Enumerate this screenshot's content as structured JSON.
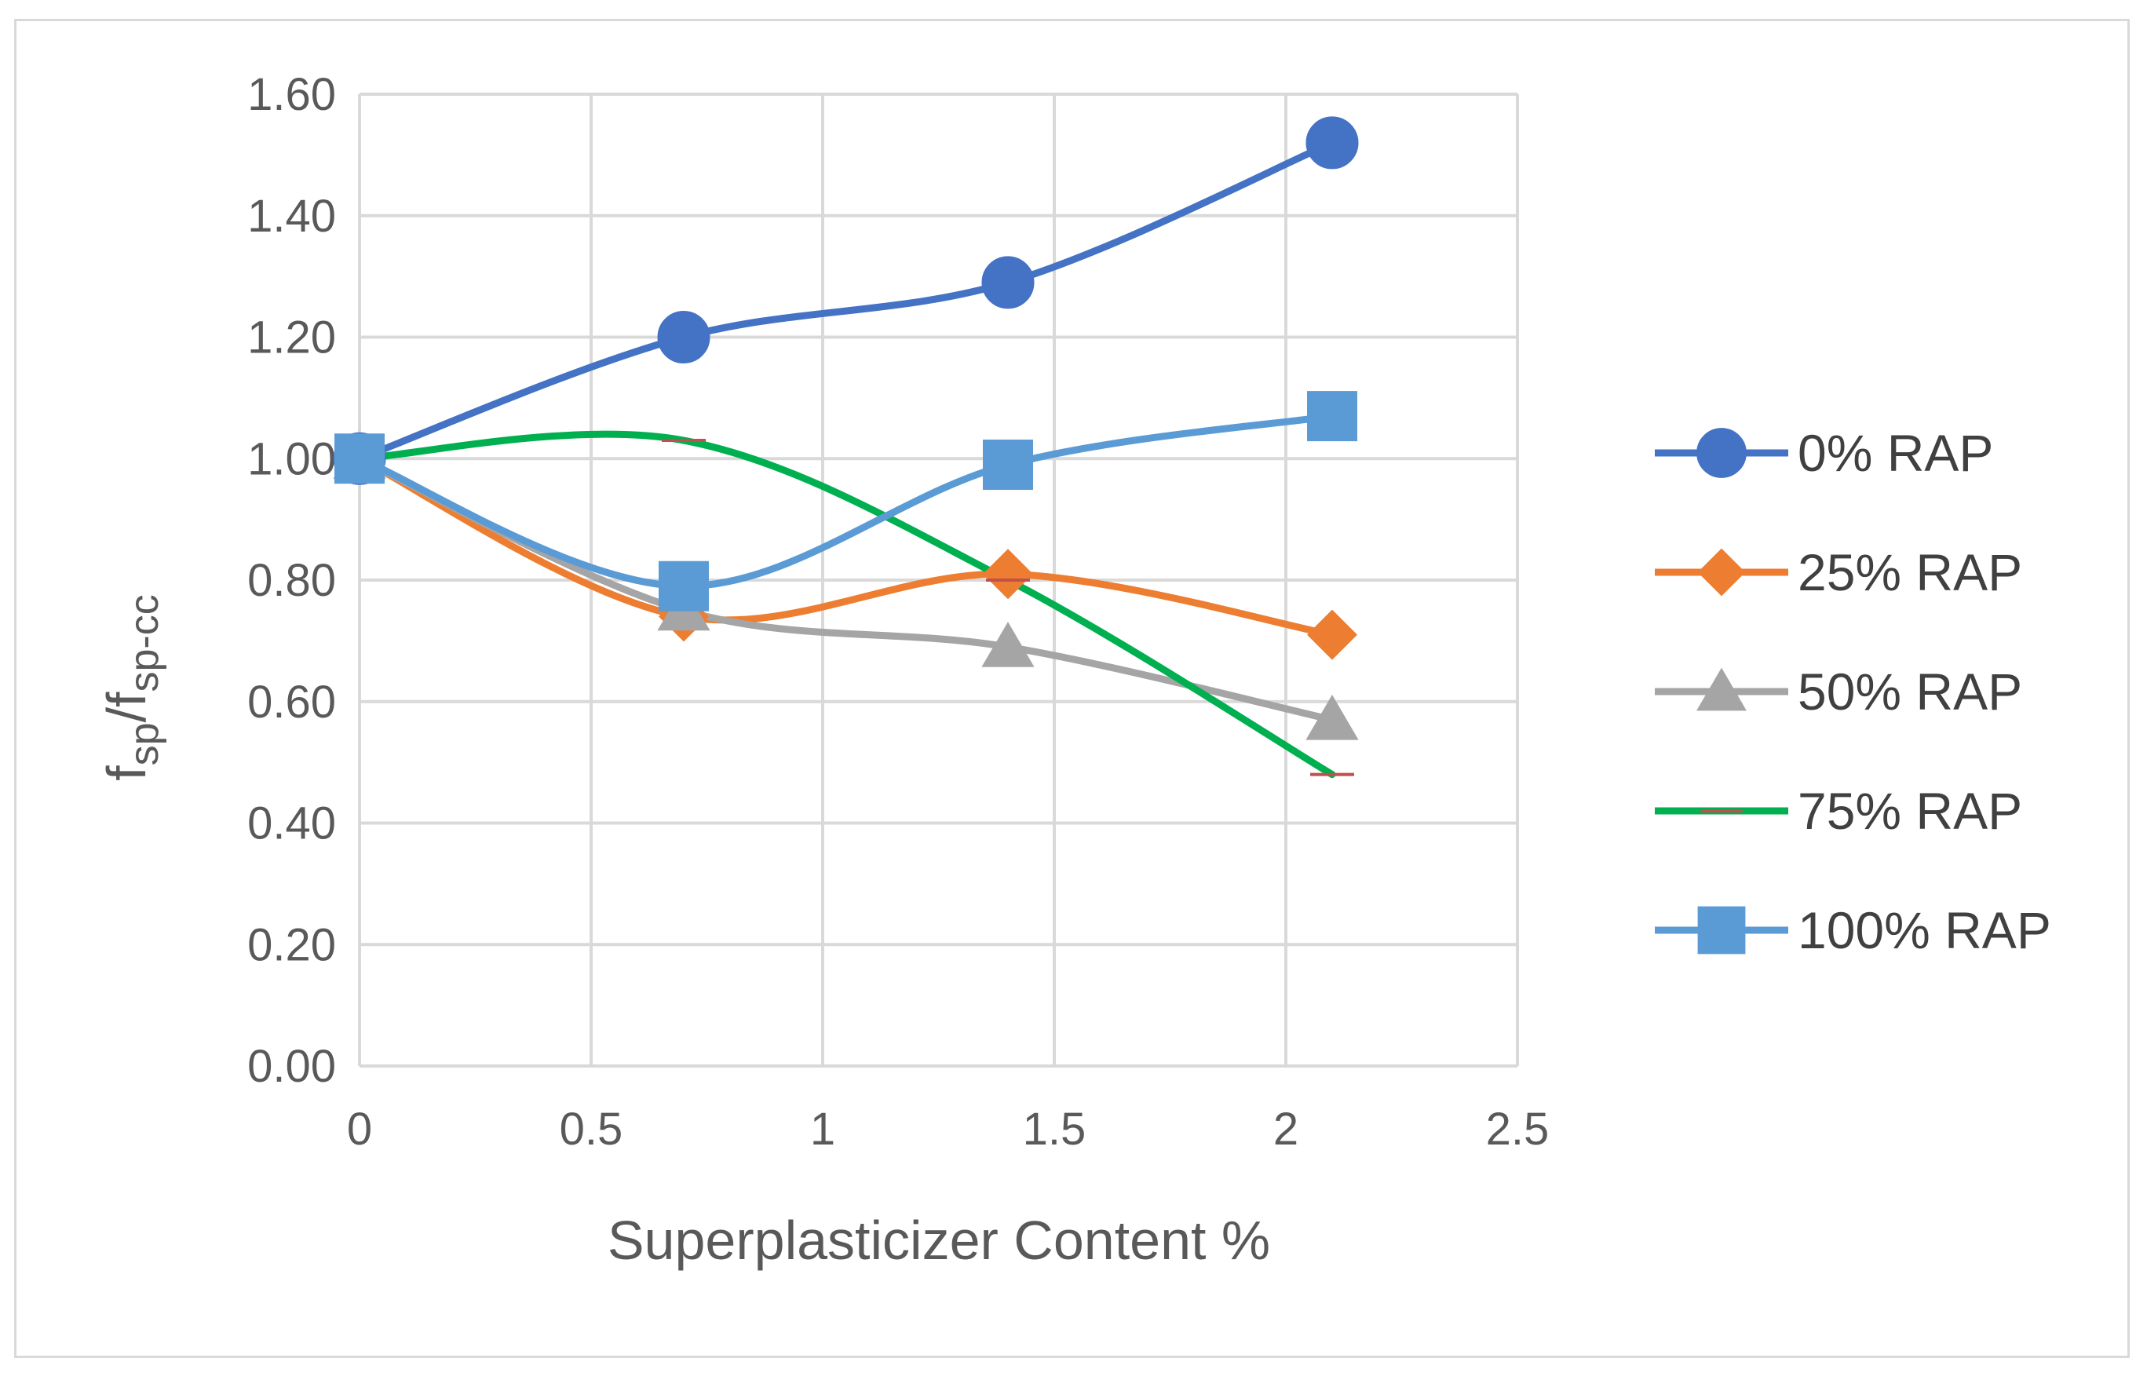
{
  "chart_data": {
    "type": "line",
    "xlabel": "Superplasticizer Content %",
    "ylabel": {
      "main": "f",
      "sub1": "sp",
      "mid": "/f",
      "sub2": "sp-cc"
    },
    "xlim": [
      0,
      2.5
    ],
    "ylim": [
      0,
      1.6
    ],
    "xticks": [
      0,
      0.5,
      1,
      1.5,
      2,
      2.5
    ],
    "xtick_labels": [
      "0",
      "0.5",
      "1",
      "1.5",
      "2",
      "2.5"
    ],
    "yticks": [
      0,
      0.2,
      0.4,
      0.6,
      0.8,
      1.0,
      1.2,
      1.4,
      1.6
    ],
    "ytick_labels": [
      "0.00",
      "0.20",
      "0.40",
      "0.60",
      "0.80",
      "1.00",
      "1.20",
      "1.40",
      "1.60"
    ],
    "grid": true,
    "legend_position": "right",
    "smooth": true,
    "series": [
      {
        "name": "0% RAP",
        "color": "#4472c4",
        "marker": "circle",
        "x": [
          0,
          0.7,
          1.4,
          2.1
        ],
        "y": [
          1.0,
          1.2,
          1.29,
          1.52
        ]
      },
      {
        "name": "25% RAP",
        "color": "#ed7d31",
        "marker": "diamond",
        "x": [
          0,
          0.7,
          1.4,
          2.1
        ],
        "y": [
          1.0,
          0.74,
          0.81,
          0.71
        ]
      },
      {
        "name": "50% RAP",
        "color": "#a5a5a5",
        "marker": "triangle",
        "x": [
          0,
          0.7,
          1.4,
          2.1
        ],
        "y": [
          1.0,
          0.75,
          0.69,
          0.57
        ]
      },
      {
        "name": "75% RAP",
        "color": "#00b050",
        "marker": "dash",
        "x": [
          0,
          0.7,
          1.4,
          2.1
        ],
        "y": [
          1.0,
          1.03,
          0.8,
          0.48
        ]
      },
      {
        "name": "100% RAP",
        "color": "#5b9bd5",
        "marker": "square",
        "x": [
          0,
          0.7,
          1.4,
          2.1
        ],
        "y": [
          1.0,
          0.79,
          0.99,
          1.07
        ]
      }
    ]
  }
}
